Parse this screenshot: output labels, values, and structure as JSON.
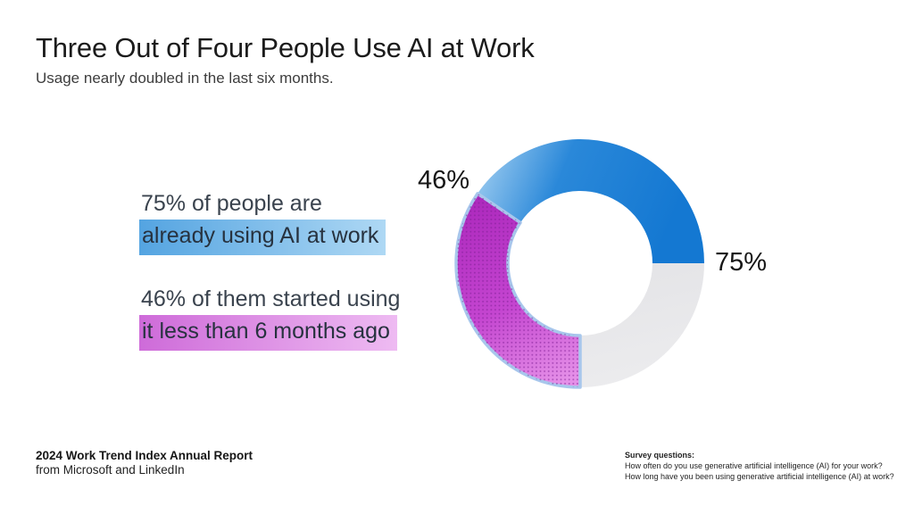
{
  "header": {
    "title": "Three Out of Four People Use AI at Work",
    "subtitle": "Usage nearly doubled in the last six months."
  },
  "stats": [
    {
      "lead": "75% of people are",
      "highlight": "already using AI at work"
    },
    {
      "lead": "46% of them started using",
      "highlight": "it less than 6 months ago"
    }
  ],
  "chart_data": {
    "type": "pie",
    "subtype": "donut",
    "direction": "clockwise",
    "slices": [
      {
        "name": "people already using AI at work",
        "value": 75,
        "unit": "% of people",
        "label": "75%",
        "color": "#1478d2"
      },
      {
        "name": "of them started using it less than 6 months ago",
        "value": 46,
        "unit": "% of AI users",
        "share_of_total_pct": 34.5,
        "label": "46%",
        "color": "#bb32c6",
        "texture": "dots"
      },
      {
        "name": "not using AI at work",
        "value": 25,
        "unit": "% of people",
        "color": "#e7e7e9"
      }
    ],
    "layout": {
      "label_75_position": "right of ring at 3 o'clock",
      "label_46_position": "upper-left of ring",
      "filled_arc_deg": 270,
      "gray_arc_span": "3 o'clock to 6 o'clock"
    }
  },
  "footer": {
    "report_bold": "2024 Work Trend Index Annual Report",
    "report_sub": "from Microsoft and LinkedIn",
    "survey_heading": "Survey questions:",
    "survey_q1": "How often do you use generative artificial intelligence (AI) for your work?",
    "survey_q2": "How long have you been using generative artificial intelligence (AI) at work?"
  },
  "colors": {
    "blue_main": "#1478d2",
    "blue_light_end": "#8fc4ee",
    "magenta_dark": "#ad29bd",
    "magenta_light": "#e590e8",
    "dot_color": "#7d1d93",
    "halo_blue": "#a8c7ec",
    "gray_slice": "#e7e7e9",
    "highlight_blue_from": "#54a4e1",
    "highlight_blue_to": "#aed8f4",
    "highlight_pink_from": "#ce6bd9",
    "highlight_pink_to": "#eebbf2"
  }
}
